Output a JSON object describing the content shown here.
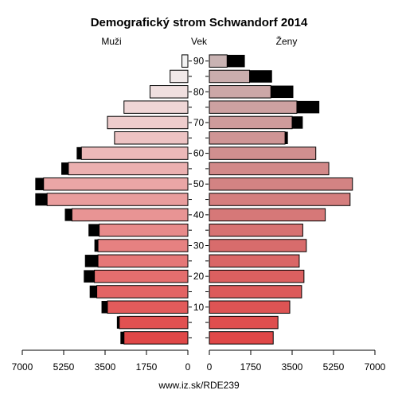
{
  "chart_data": {
    "type": "bar",
    "title": "Demografický strom Schwandorf 2014",
    "left_label": "Muži",
    "center_label": "Vek",
    "right_label": "Ženy",
    "footer": "www.iz.sk/RDE239",
    "age_groups": [
      "0-4",
      "5-9",
      "10-14",
      "15-19",
      "20-24",
      "25-29",
      "30-34",
      "35-39",
      "40-44",
      "45-49",
      "50-54",
      "55-59",
      "60-64",
      "65-69",
      "70-74",
      "75-79",
      "80-84",
      "85-89",
      "90+"
    ],
    "age_tick_labels": [
      "10",
      "20",
      "30",
      "40",
      "50",
      "60",
      "70",
      "80",
      "90"
    ],
    "x_tick_labels": [
      "7000",
      "5250",
      "3500",
      "1750",
      "0",
      "1750",
      "3500",
      "5250",
      "7000"
    ],
    "xlim": [
      0,
      7000
    ],
    "series": [
      {
        "name": "Muži",
        "values": [
          2700,
          2900,
          3400,
          3850,
          3950,
          3800,
          3800,
          3750,
          4900,
          5950,
          6100,
          5050,
          4500,
          3100,
          3400,
          2700,
          1600,
          750,
          250
        ]
      },
      {
        "name": "Ženy",
        "values": [
          2700,
          2900,
          3400,
          3900,
          4000,
          3800,
          4100,
          3950,
          4900,
          5950,
          6050,
          5050,
          4500,
          3200,
          3500,
          3700,
          2600,
          1700,
          750
        ]
      }
    ],
    "excess": {
      "Muži": [
        150,
        100,
        250,
        300,
        450,
        550,
        150,
        450,
        300,
        500,
        350,
        300,
        200,
        0,
        0,
        0,
        0,
        0,
        0
      ],
      "Ženy": [
        0,
        0,
        0,
        0,
        0,
        0,
        0,
        0,
        0,
        0,
        0,
        0,
        0,
        120,
        450,
        950,
        950,
        950,
        750
      ]
    },
    "colors": {
      "excess": "#000000",
      "bar_stroke": "#000000",
      "men_gradient": [
        "#e04848",
        "#f2f2f2"
      ],
      "women_gradient": [
        "#e04848",
        "#c9b3b3"
      ]
    }
  }
}
